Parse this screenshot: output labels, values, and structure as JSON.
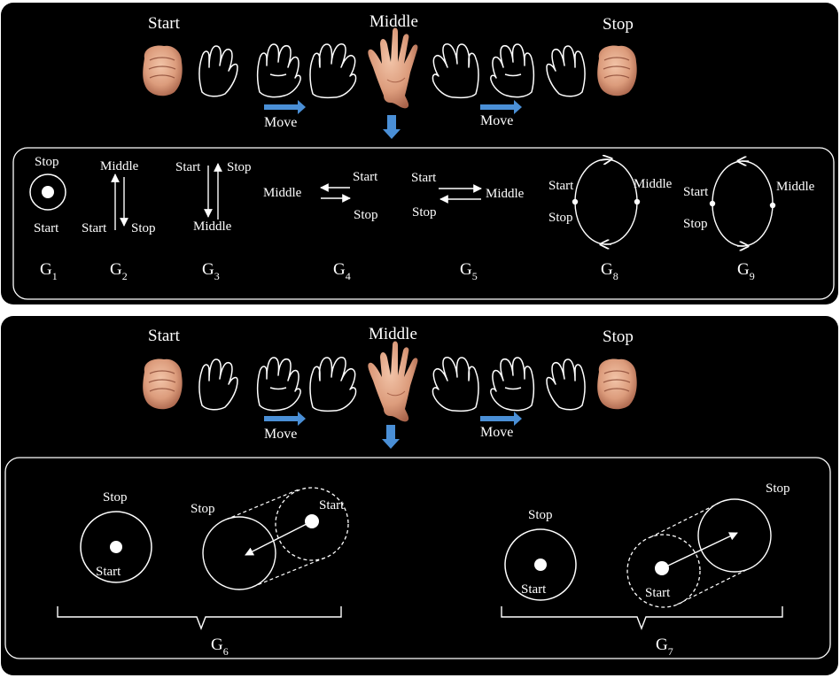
{
  "panel_top": {
    "sequence": {
      "start_label": "Start",
      "middle_label": "Middle",
      "stop_label": "Stop",
      "move_left": "Move",
      "move_right": "Move"
    },
    "gestures": {
      "g1": {
        "label": "G",
        "sub": "1",
        "stop": "Stop",
        "start": "Start"
      },
      "g2": {
        "label": "G",
        "sub": "2",
        "middle": "Middle",
        "start": "Start",
        "stop": "Stop"
      },
      "g3": {
        "label": "G",
        "sub": "3",
        "start": "Start",
        "stop": "Stop",
        "middle": "Middle"
      },
      "g4": {
        "label": "G",
        "sub": "4",
        "middle": "Middle",
        "start": "Start",
        "stop": "Stop"
      },
      "g5": {
        "label": "G",
        "sub": "5",
        "start": "Start",
        "middle": "Middle",
        "stop": "Stop"
      },
      "g8": {
        "label": "G",
        "sub": "8",
        "start": "Start",
        "stop": "Stop",
        "middle": "Middle"
      },
      "g9": {
        "label": "G",
        "sub": "9",
        "start": "Start",
        "stop": "Stop",
        "middle": "Middle"
      }
    }
  },
  "panel_bottom": {
    "sequence": {
      "start_label": "Start",
      "middle_label": "Middle",
      "stop_label": "Stop",
      "move_left": "Move",
      "move_right": "Move"
    },
    "gestures": {
      "g6": {
        "label": "G",
        "sub": "6",
        "circle_stop": "Stop",
        "circle_start": "Start",
        "cyl_stop": "Stop",
        "cyl_start": "Start"
      },
      "g7": {
        "label": "G",
        "sub": "7",
        "circle_stop": "Stop",
        "circle_start": "Start",
        "cyl_stop": "Stop",
        "cyl_start": "Start"
      }
    }
  },
  "colors": {
    "background": "#000000",
    "foreground": "#ffffff",
    "arrow_blue": "#4a8fd6",
    "skin": "#e2a98a",
    "skin_shadow": "#b8735a"
  }
}
